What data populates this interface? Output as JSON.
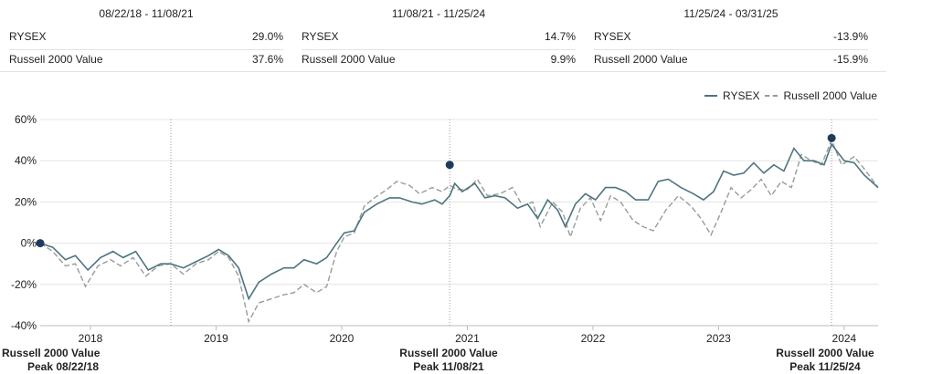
{
  "periods": [
    {
      "title": "08/22/18 - 11/08/21",
      "rows": [
        {
          "name": "RYSEX",
          "value": "29.0%"
        },
        {
          "name": "Russell 2000 Value",
          "value": "37.6%"
        }
      ]
    },
    {
      "title": "11/08/21 - 11/25/24",
      "rows": [
        {
          "name": "RYSEX",
          "value": "14.7%"
        },
        {
          "name": "Russell 2000 Value",
          "value": "9.9%"
        }
      ]
    },
    {
      "title": "11/25/24 - 03/31/25",
      "rows": [
        {
          "name": "RYSEX",
          "value": "-13.9%"
        },
        {
          "name": "Russell 2000 Value",
          "value": "-15.9%"
        }
      ]
    }
  ],
  "legend": {
    "series1": "RYSEX",
    "series2": "Russell 2000 Value"
  },
  "colors": {
    "rysex": "#4e7480",
    "r2000": "#9a9a9a",
    "marker": "#1f3a5f",
    "grid": "#e4e4e4"
  },
  "peaks": [
    {
      "line1": "Russell 2000 Value",
      "line2": "Peak 08/22/18",
      "x": 2018.64
    },
    {
      "line1": "Russell 2000 Value",
      "line2": "Peak 11/08/21",
      "x": 2020.86
    },
    {
      "line1": "Russell 2000 Value",
      "line2": "Peak 11/25/24",
      "x": 2023.9
    }
  ],
  "chart_data": {
    "type": "line",
    "xlim": [
      2017.6,
      2024.27
    ],
    "ylim": [
      -40,
      60
    ],
    "yticks": [
      -40,
      -20,
      0,
      20,
      40,
      60
    ],
    "ytick_labels": [
      "-40%",
      "-20%",
      "0%",
      "20%",
      "40%",
      "60%"
    ],
    "xticks": [
      2018,
      2019,
      2020,
      2021,
      2022,
      2023,
      2024
    ],
    "xtick_labels": [
      "2018",
      "2019",
      "2020",
      "2021",
      "2022",
      "2023",
      "2024"
    ],
    "markers": [
      {
        "x": 2017.6,
        "y": 0
      },
      {
        "x": 2020.86,
        "y": 38
      },
      {
        "x": 2023.9,
        "y": 51
      }
    ],
    "series": [
      {
        "name": "RYSEX",
        "dash": false,
        "points": [
          [
            2017.6,
            0
          ],
          [
            2017.7,
            -2
          ],
          [
            2017.8,
            -8
          ],
          [
            2017.88,
            -6
          ],
          [
            2017.98,
            -13
          ],
          [
            2018.08,
            -7
          ],
          [
            2018.18,
            -4
          ],
          [
            2018.26,
            -7
          ],
          [
            2018.36,
            -4
          ],
          [
            2018.46,
            -13
          ],
          [
            2018.56,
            -10
          ],
          [
            2018.64,
            -10
          ],
          [
            2018.74,
            -12
          ],
          [
            2018.84,
            -9
          ],
          [
            2018.94,
            -6
          ],
          [
            2019.02,
            -3
          ],
          [
            2019.1,
            -6
          ],
          [
            2019.18,
            -12
          ],
          [
            2019.26,
            -27
          ],
          [
            2019.34,
            -19
          ],
          [
            2019.44,
            -15
          ],
          [
            2019.54,
            -12
          ],
          [
            2019.62,
            -12
          ],
          [
            2019.7,
            -8
          ],
          [
            2019.8,
            -10
          ],
          [
            2019.88,
            -7
          ],
          [
            2019.96,
            0
          ],
          [
            2020.02,
            5
          ],
          [
            2020.1,
            6
          ],
          [
            2020.18,
            15
          ],
          [
            2020.28,
            19
          ],
          [
            2020.38,
            22
          ],
          [
            2020.46,
            22
          ],
          [
            2020.56,
            20
          ],
          [
            2020.64,
            19
          ],
          [
            2020.74,
            21
          ],
          [
            2020.8,
            19
          ],
          [
            2020.86,
            23
          ],
          [
            2020.9,
            29
          ],
          [
            2020.96,
            25
          ],
          [
            2021.06,
            29
          ],
          [
            2021.14,
            22
          ],
          [
            2021.22,
            23
          ],
          [
            2021.3,
            22
          ],
          [
            2021.4,
            17
          ],
          [
            2021.48,
            19
          ],
          [
            2021.56,
            12
          ],
          [
            2021.64,
            21
          ],
          [
            2021.72,
            16
          ],
          [
            2021.78,
            8
          ],
          [
            2021.86,
            19
          ],
          [
            2021.94,
            24
          ],
          [
            2022.02,
            21
          ],
          [
            2022.1,
            27
          ],
          [
            2022.18,
            27
          ],
          [
            2022.26,
            25
          ],
          [
            2022.34,
            21
          ],
          [
            2022.44,
            21
          ],
          [
            2022.52,
            30
          ],
          [
            2022.6,
            31
          ],
          [
            2022.7,
            27
          ],
          [
            2022.8,
            24
          ],
          [
            2022.88,
            21
          ],
          [
            2022.96,
            25
          ],
          [
            2023.04,
            35
          ],
          [
            2023.12,
            33
          ],
          [
            2023.2,
            34
          ],
          [
            2023.28,
            39
          ],
          [
            2023.36,
            34
          ],
          [
            2023.44,
            38
          ],
          [
            2023.52,
            35
          ],
          [
            2023.6,
            46
          ],
          [
            2023.68,
            40
          ],
          [
            2023.76,
            40
          ],
          [
            2023.84,
            38
          ],
          [
            2023.9,
            48
          ],
          [
            2024.0,
            40
          ],
          [
            2024.08,
            39
          ],
          [
            2024.16,
            33
          ],
          [
            2024.27,
            27
          ]
        ]
      },
      {
        "name": "Russell 2000 Value",
        "dash": true,
        "points": [
          [
            2017.6,
            0
          ],
          [
            2017.7,
            -4
          ],
          [
            2017.8,
            -11
          ],
          [
            2017.88,
            -10
          ],
          [
            2017.96,
            -21
          ],
          [
            2018.06,
            -11
          ],
          [
            2018.16,
            -8
          ],
          [
            2018.24,
            -11
          ],
          [
            2018.34,
            -7
          ],
          [
            2018.44,
            -16
          ],
          [
            2018.54,
            -11
          ],
          [
            2018.64,
            -10
          ],
          [
            2018.74,
            -15
          ],
          [
            2018.84,
            -10
          ],
          [
            2018.94,
            -8
          ],
          [
            2019.02,
            -4
          ],
          [
            2019.1,
            -7
          ],
          [
            2019.18,
            -16
          ],
          [
            2019.26,
            -38
          ],
          [
            2019.34,
            -29
          ],
          [
            2019.44,
            -27
          ],
          [
            2019.54,
            -25
          ],
          [
            2019.62,
            -24
          ],
          [
            2019.7,
            -20
          ],
          [
            2019.8,
            -24
          ],
          [
            2019.88,
            -21
          ],
          [
            2019.96,
            -4
          ],
          [
            2020.02,
            3
          ],
          [
            2020.1,
            5
          ],
          [
            2020.18,
            18
          ],
          [
            2020.26,
            22
          ],
          [
            2020.36,
            26
          ],
          [
            2020.44,
            30
          ],
          [
            2020.54,
            28
          ],
          [
            2020.62,
            24
          ],
          [
            2020.72,
            27
          ],
          [
            2020.8,
            25
          ],
          [
            2020.86,
            28
          ],
          [
            2020.92,
            26
          ],
          [
            2021.0,
            26
          ],
          [
            2021.08,
            31
          ],
          [
            2021.16,
            23
          ],
          [
            2021.26,
            24
          ],
          [
            2021.36,
            27
          ],
          [
            2021.44,
            18
          ],
          [
            2021.52,
            20
          ],
          [
            2021.58,
            8
          ],
          [
            2021.68,
            20
          ],
          [
            2021.76,
            15
          ],
          [
            2021.82,
            3
          ],
          [
            2021.9,
            17
          ],
          [
            2021.98,
            22
          ],
          [
            2022.06,
            11
          ],
          [
            2022.14,
            23
          ],
          [
            2022.22,
            20
          ],
          [
            2022.32,
            11
          ],
          [
            2022.4,
            8
          ],
          [
            2022.48,
            6
          ],
          [
            2022.58,
            16
          ],
          [
            2022.68,
            23
          ],
          [
            2022.78,
            18
          ],
          [
            2022.86,
            12
          ],
          [
            2022.94,
            4
          ],
          [
            2023.02,
            15
          ],
          [
            2023.1,
            27
          ],
          [
            2023.18,
            22
          ],
          [
            2023.26,
            26
          ],
          [
            2023.34,
            31
          ],
          [
            2023.42,
            23
          ],
          [
            2023.5,
            30
          ],
          [
            2023.58,
            27
          ],
          [
            2023.66,
            43
          ],
          [
            2023.74,
            40
          ],
          [
            2023.82,
            38
          ],
          [
            2023.9,
            50
          ],
          [
            2023.98,
            38
          ],
          [
            2024.08,
            42
          ],
          [
            2024.16,
            36
          ],
          [
            2024.27,
            27
          ]
        ]
      }
    ]
  }
}
